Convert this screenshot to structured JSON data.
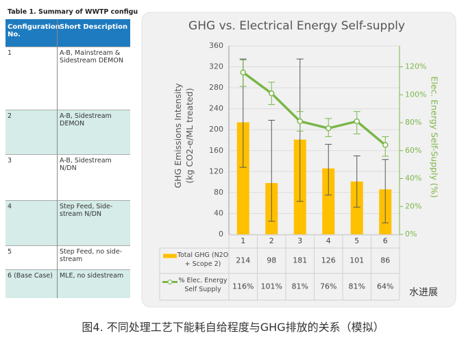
{
  "table": {
    "title": "Table 1.  Summary of WWTP configu",
    "header": [
      "Configuration No.",
      "Short Description"
    ],
    "rows": [
      [
        "1",
        "A-B, Mainstream & Sidestream DEMON"
      ],
      [
        "2",
        "A-B, Sidestream DEMON"
      ],
      [
        "3",
        "A-B, Sidestream N/DN"
      ],
      [
        "4",
        "Step Feed, Side-stream N/DN"
      ],
      [
        "5",
        "Step Feed, no side-stream"
      ],
      [
        "6 (Base Case)",
        "MLE, no sidestream"
      ]
    ]
  },
  "chart_data": {
    "type": "bar",
    "title": "GHG vs. Electrical Energy Self-supply",
    "ylabel": [
      "GHG Emissions Intensity",
      "(kg CO2-e/ML treated)"
    ],
    "y2label": "Elec. Energy Self-Supply (%)",
    "categories": [
      "1",
      "2",
      "3",
      "4",
      "5",
      "6"
    ],
    "series": [
      {
        "name": "Total GHG (N2O + Scope 2)",
        "type": "bar",
        "color": "#ffc000",
        "values": [
          214,
          98,
          181,
          126,
          101,
          86
        ],
        "lower": [
          128,
          25,
          63,
          75,
          52,
          22
        ],
        "upper": [
          335,
          218,
          335,
          172,
          150,
          143
        ]
      },
      {
        "name": "% Elec. Energy Self Supply",
        "type": "line",
        "axis": "y2",
        "color": "#7ab648",
        "values": [
          116,
          101,
          81,
          76,
          81,
          64
        ],
        "value_labels": [
          "116%",
          "101%",
          "81%",
          "76%",
          "81%",
          "64%"
        ],
        "lower": [
          106,
          93,
          74,
          70,
          72,
          56
        ],
        "upper": [
          125,
          109,
          88,
          83,
          88,
          70
        ]
      }
    ],
    "ylim": [
      0,
      360
    ],
    "yticks": [
      0,
      40,
      80,
      120,
      160,
      200,
      240,
      280,
      320,
      360
    ],
    "y2lim": [
      0,
      135
    ],
    "y2ticks": [
      {
        "value": 0,
        "label": "0%"
      },
      {
        "value": 20,
        "label": "20%"
      },
      {
        "value": 40,
        "label": "40%"
      },
      {
        "value": 60,
        "label": "60%"
      },
      {
        "value": 80,
        "label": "80%"
      },
      {
        "value": 100,
        "label": "100%"
      },
      {
        "value": 120,
        "label": "120%"
      }
    ],
    "grid": true
  },
  "caption": "图4. 不同处理工艺下能耗自给程度与GHG排放的关系（模拟）",
  "watermark": "水进展"
}
